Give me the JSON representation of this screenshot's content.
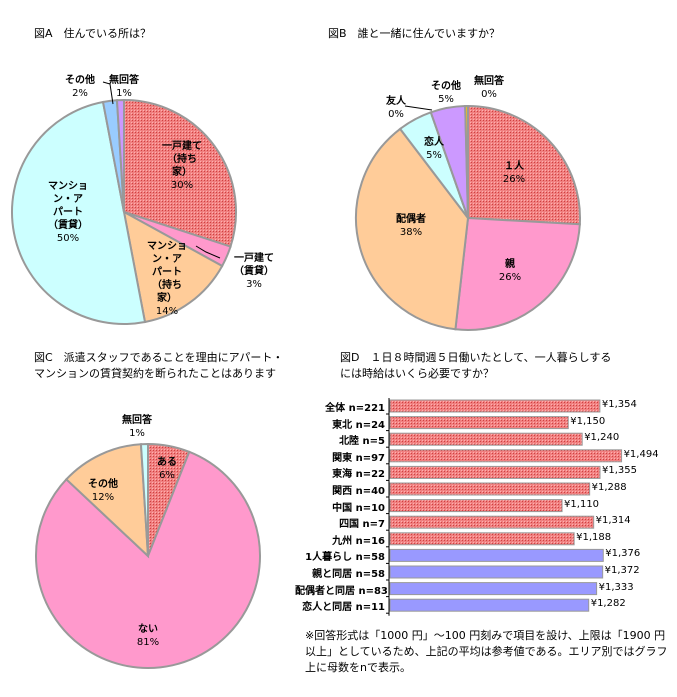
{
  "chart_data": [
    {
      "type": "pie",
      "title": "図A　住んでいる所は？",
      "slices": [
        {
          "label": "一戸建て（持ち家）",
          "value": 30,
          "pct_label": "30%",
          "color": "#f08080",
          "hatched": true
        },
        {
          "label": "一戸建て（賃貸）",
          "value": 3,
          "pct_label": "3%",
          "color": "#ff99cc"
        },
        {
          "label": "マンション・アパート（持ち家）",
          "value": 14,
          "pct_label": "14%",
          "color": "#ffcc99"
        },
        {
          "label": "マンション・アパート（賃貸）",
          "value": 50,
          "pct_label": "50%",
          "color": "#ccffff"
        },
        {
          "label": "その他",
          "value": 2,
          "pct_label": "2%",
          "color": "#99ccff"
        },
        {
          "label": "無回答",
          "value": 1,
          "pct_label": "1%",
          "color": "#cc99ff"
        }
      ]
    },
    {
      "type": "pie",
      "title": "図B　誰と一緒に住んでいますか？",
      "slices": [
        {
          "label": "１人",
          "value": 26,
          "pct_label": "26%",
          "color": "#f08080",
          "hatched": true
        },
        {
          "label": "親",
          "value": 26,
          "pct_label": "26%",
          "color": "#ff99cc"
        },
        {
          "label": "配偶者",
          "value": 38,
          "pct_label": "38%",
          "color": "#ffcc99"
        },
        {
          "label": "恋人",
          "value": 5,
          "pct_label": "5%",
          "color": "#ccffff"
        },
        {
          "label": "友人",
          "value": 0,
          "pct_label": "0%",
          "color": "#99ccff"
        },
        {
          "label": "その他",
          "value": 5,
          "pct_label": "5%",
          "color": "#cc99ff"
        },
        {
          "label": "無回答",
          "value": 0.4,
          "pct_label": "0%",
          "color": "#ffcc00"
        }
      ]
    },
    {
      "type": "pie",
      "title_lines": [
        "図C　派遣スタッフであることを理由にアパート・",
        "マンションの賃貸契約を断られたことはあります"
      ],
      "slices": [
        {
          "label": "ある",
          "value": 6,
          "pct_label": "6%",
          "color": "#f08080",
          "hatched": true
        },
        {
          "label": "ない",
          "value": 81,
          "pct_label": "81%",
          "color": "#ff99cc"
        },
        {
          "label": "その他",
          "value": 12,
          "pct_label": "12%",
          "color": "#ffcc99"
        },
        {
          "label": "無回答",
          "value": 1,
          "pct_label": "1%",
          "color": "#ccffff"
        }
      ]
    },
    {
      "type": "bar",
      "orientation": "horizontal",
      "title_lines": [
        "図D　１日８時間週５日働いたとして、一人暮らしする",
        "には時給はいくら必要ですか？"
      ],
      "categories": [
        "全体 n=221",
        "東北 n=24",
        "北陸 n=5",
        "関東 n=97",
        "東海 n=22",
        "関西 n=40",
        "中国 n=10",
        "四国 n=7",
        "九州 n=16",
        "1人暮らし n=58",
        "親と同居 n=58",
        "配偶者と同居 n=83",
        "恋人と同居 n=11"
      ],
      "values": [
        1354,
        1150,
        1240,
        1494,
        1355,
        1288,
        1110,
        1314,
        1188,
        1376,
        1372,
        1333,
        1282
      ],
      "value_labels": [
        "¥1,354",
        "¥1,150",
        "¥1,240",
        "¥1,494",
        "¥1,355",
        "¥1,288",
        "¥1,110",
        "¥1,314",
        "¥1,188",
        "¥1,376",
        "¥1,372",
        "¥1,333",
        "¥1,282"
      ],
      "groups": [
        "area",
        "area",
        "area",
        "area",
        "area",
        "area",
        "area",
        "area",
        "area",
        "household",
        "household",
        "household",
        "household"
      ],
      "colors": {
        "area": "#f08080",
        "household": "#9999ff"
      },
      "xlim": [
        0,
        1600
      ]
    }
  ],
  "footnote": "※回答形式は「1000 円」～100 円刻みで項目を設け、上限は「1900 円以上」としているため、上記の平均は参考値である。エリア別ではグラフ上に母数をnで表示。"
}
